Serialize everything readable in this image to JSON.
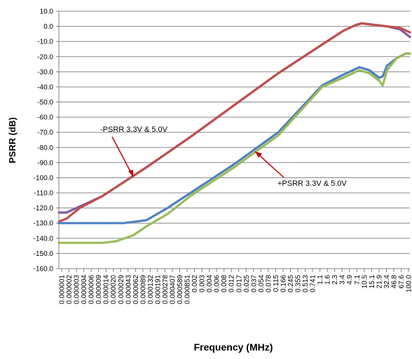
{
  "chart_data": {
    "type": "line",
    "xlabel": "Frequency (MHz)",
    "ylabel": "PSRR (dB)",
    "ylim": [
      -160,
      10
    ],
    "y_ticks": [
      "10.0",
      "0.0",
      "-10.0",
      "-20.0",
      "-30.0",
      "-40.0",
      "-50.0",
      "-60.0",
      "-70.0",
      "-80.0",
      "-90.0",
      "-100.0",
      "-110.0",
      "-120.0",
      "-130.0",
      "-140.0",
      "-150.0",
      "-160.0"
    ],
    "x_tick_labels": [
      "0.000001",
      "0.000002",
      "0.000003",
      "0.000004",
      "0.000006",
      "0.000009",
      "0.000014",
      "0.000020",
      "0.000029",
      "0.000043",
      "0.000062",
      "0.000089",
      "0.000132",
      "0.000191",
      "0.000278",
      "0.000407",
      "0.000589",
      "0.000851",
      "0.002",
      "0.003",
      "0.004",
      "0.006",
      "0.008",
      "0.012",
      "0.017",
      "0.025",
      "0.037",
      "0.054",
      "0.078",
      "0.115",
      "0.166",
      "0.245",
      "0.355",
      "0.513",
      "0.741",
      "1.1",
      "1.6",
      "2.3",
      "3.4",
      "4.9",
      "7.1",
      "10.5",
      "15.1",
      "21.9",
      "32.4",
      "46.8",
      "67.6",
      "100.0"
    ],
    "x_scale": "log",
    "xlim": [
      1e-06,
      100
    ],
    "grid": true,
    "legend": "none",
    "annotations": [
      {
        "text": "-PSRR 3.3V & 5.0V",
        "points_to": "purple series"
      },
      {
        "text": "+PSRR 3.3V & 5.0V",
        "points_to": "green/blue series"
      }
    ],
    "series": [
      {
        "color": "#7f5ba3",
        "x": [
          1e-06,
          1.5e-06,
          3e-06,
          1e-05,
          0.0001,
          0.001,
          0.01,
          0.1,
          1,
          3,
          6,
          8,
          15,
          30,
          60,
          100
        ],
        "y": [
          -123,
          -123,
          -119,
          -112,
          -93,
          -73,
          -52,
          -31,
          -12,
          -3,
          1,
          2,
          1,
          0,
          -2,
          -7
        ]
      },
      {
        "color": "#c0504d",
        "x": [
          1e-06,
          1.5e-06,
          3e-06,
          1e-05,
          0.0001,
          0.001,
          0.01,
          0.1,
          1,
          3,
          6,
          8,
          15,
          30,
          60,
          100
        ],
        "y": [
          -129,
          -127,
          -120,
          -112,
          -93,
          -73,
          -52,
          -31,
          -12,
          -3,
          1,
          2,
          1,
          0,
          -1,
          -4
        ]
      },
      {
        "color": "#4f81bd",
        "x": [
          1e-06,
          1e-05,
          3e-05,
          0.0001,
          0.0003,
          0.001,
          0.01,
          0.1,
          1,
          3,
          7,
          12,
          20,
          24,
          30,
          50,
          80,
          100
        ],
        "y": [
          -130,
          -130,
          -130,
          -128,
          -120,
          -110,
          -91,
          -70,
          -39,
          -32,
          -27,
          -29,
          -34,
          -33,
          -26,
          -21,
          -18,
          -18
        ]
      },
      {
        "color": "#9bbb59",
        "x": [
          1e-06,
          1e-05,
          2e-05,
          5e-05,
          0.0001,
          0.0003,
          0.001,
          0.01,
          0.1,
          1,
          3,
          7,
          12,
          20,
          24,
          30,
          50,
          80,
          100
        ],
        "y": [
          -143,
          -143,
          -142,
          -138,
          -132,
          -124,
          -112,
          -93,
          -72,
          -40,
          -34,
          -29,
          -31,
          -36,
          -39,
          -29,
          -21,
          -18,
          -18
        ]
      }
    ]
  }
}
